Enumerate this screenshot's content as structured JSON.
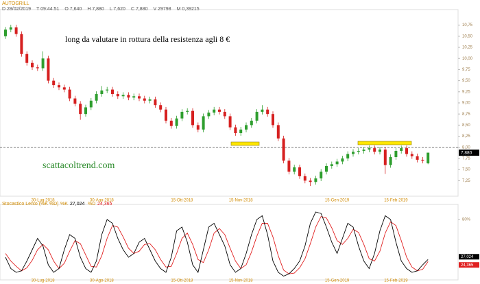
{
  "header": {
    "items": [
      "D 28/02/2019",
      "T 09:44:51",
      "O 7,640",
      "H 7,880",
      "L 7,620",
      "C 7,880",
      "V 29798",
      "M 0,39215"
    ]
  },
  "chart_data": [
    {
      "type": "candlestick",
      "title": "AUTOGRILL",
      "categories": [
        null,
        null,
        null,
        null,
        null,
        null,
        null,
        "30-Lug-2018",
        null,
        null,
        null,
        null,
        null,
        null,
        null,
        null,
        null,
        null,
        "30-Ago-2018",
        null,
        null,
        null,
        null,
        null,
        null,
        null,
        null,
        null,
        null,
        null,
        null,
        null,
        null,
        "15-Ott-2018",
        null,
        null,
        null,
        null,
        null,
        null,
        null,
        null,
        null,
        null,
        "15-Nov-2018",
        null,
        null,
        null,
        null,
        null,
        null,
        null,
        null,
        null,
        null,
        null,
        null,
        null,
        null,
        null,
        null,
        null,
        "15-Gen-2019",
        null,
        null,
        null,
        null,
        null,
        null,
        null,
        null,
        null,
        null,
        "15-Feb-2019",
        null,
        null,
        null,
        null,
        null,
        null
      ],
      "open": [
        10.5,
        10.65,
        10.7,
        10.55,
        10.1,
        9.9,
        9.8,
        9.78,
        10.0,
        9.5,
        9.4,
        9.35,
        9.3,
        9.1,
        8.98,
        8.75,
        8.9,
        9.05,
        9.2,
        9.28,
        9.3,
        9.2,
        9.15,
        9.18,
        9.12,
        9.15,
        9.1,
        9.05,
        9.08,
        8.95,
        8.85,
        8.6,
        8.48,
        8.65,
        8.8,
        8.82,
        8.5,
        8.4,
        8.7,
        8.78,
        8.85,
        8.8,
        8.7,
        8.45,
        8.32,
        8.4,
        8.5,
        8.6,
        8.8,
        8.85,
        8.75,
        8.5,
        8.2,
        7.7,
        7.45,
        7.55,
        7.35,
        7.25,
        7.22,
        7.3,
        7.45,
        7.58,
        7.62,
        7.68,
        7.75,
        7.85,
        7.9,
        7.92,
        7.95,
        7.98,
        7.9,
        7.95,
        7.6,
        7.78,
        7.92,
        7.98,
        7.85,
        7.8,
        7.72,
        7.64
      ],
      "high": [
        10.71,
        10.76,
        10.76,
        10.61,
        10.16,
        9.96,
        9.86,
        10.16,
        10.06,
        9.56,
        9.46,
        9.41,
        9.36,
        9.16,
        9.04,
        8.96,
        9.11,
        9.26,
        9.38,
        9.36,
        9.36,
        9.26,
        9.24,
        9.24,
        9.21,
        9.21,
        9.16,
        9.14,
        9.14,
        9.01,
        8.91,
        8.66,
        8.71,
        8.86,
        8.88,
        8.88,
        8.56,
        8.76,
        8.84,
        8.91,
        8.91,
        8.86,
        8.76,
        8.51,
        8.46,
        8.56,
        8.66,
        8.86,
        8.95,
        8.91,
        8.81,
        8.56,
        8.26,
        7.76,
        7.61,
        7.61,
        7.41,
        7.31,
        7.36,
        7.51,
        7.64,
        7.68,
        7.74,
        7.81,
        7.91,
        7.96,
        7.98,
        8.01,
        8.04,
        8.04,
        8.01,
        8.01,
        7.84,
        7.98,
        8.04,
        8.04,
        7.91,
        7.86,
        7.78,
        7.88
      ],
      "low": [
        10.44,
        10.59,
        10.49,
        10.04,
        9.84,
        9.74,
        9.72,
        9.72,
        9.44,
        9.34,
        9.29,
        9.24,
        9.04,
        8.92,
        8.62,
        8.69,
        8.84,
        8.99,
        9.14,
        9.22,
        9.14,
        9.09,
        9.09,
        9.06,
        9.06,
        9.04,
        8.99,
        8.99,
        8.89,
        8.79,
        8.54,
        8.42,
        8.42,
        8.59,
        8.74,
        8.44,
        8.34,
        8.34,
        8.64,
        8.72,
        8.74,
        8.64,
        8.39,
        8.26,
        8.26,
        8.34,
        8.44,
        8.54,
        8.74,
        8.69,
        8.44,
        8.14,
        7.64,
        7.39,
        7.39,
        7.29,
        7.19,
        7.13,
        7.16,
        7.24,
        7.39,
        7.52,
        7.56,
        7.62,
        7.69,
        7.79,
        7.84,
        7.86,
        7.89,
        7.84,
        7.84,
        7.4,
        7.54,
        7.72,
        7.86,
        7.79,
        7.74,
        7.66,
        7.64,
        7.62
      ],
      "close": [
        10.65,
        10.7,
        10.55,
        10.1,
        9.9,
        9.8,
        9.78,
        10.0,
        9.5,
        9.4,
        9.35,
        9.3,
        9.1,
        8.98,
        8.75,
        8.9,
        9.05,
        9.2,
        9.28,
        9.3,
        9.2,
        9.15,
        9.18,
        9.12,
        9.15,
        9.1,
        9.05,
        9.08,
        8.95,
        8.85,
        8.6,
        8.48,
        8.65,
        8.8,
        8.82,
        8.5,
        8.4,
        8.7,
        8.78,
        8.85,
        8.8,
        8.7,
        8.45,
        8.32,
        8.4,
        8.5,
        8.6,
        8.8,
        8.85,
        8.75,
        8.5,
        8.2,
        7.7,
        7.45,
        7.55,
        7.35,
        7.25,
        7.22,
        7.3,
        7.45,
        7.58,
        7.62,
        7.68,
        7.75,
        7.85,
        7.9,
        7.92,
        7.95,
        7.98,
        7.9,
        7.95,
        7.6,
        7.78,
        7.92,
        7.98,
        7.85,
        7.8,
        7.72,
        7.7,
        7.88
      ],
      "up_color": "#2e9e2e",
      "down_color": "#d62020",
      "ylim": [
        6.9,
        11.1
      ],
      "yticks": [
        {
          "value": 10.75,
          "label": "10,75"
        },
        {
          "value": 10.5,
          "label": "10,50"
        },
        {
          "value": 10.25,
          "label": "10,25"
        },
        {
          "value": 10,
          "label": "10,00"
        },
        {
          "value": 9.75,
          "label": "9,75"
        },
        {
          "value": 9.5,
          "label": "9,50"
        },
        {
          "value": 9.25,
          "label": "9,25"
        },
        {
          "value": 9,
          "label": "9,00"
        },
        {
          "value": 8.75,
          "label": "8,75"
        },
        {
          "value": 8.5,
          "label": "8,50"
        },
        {
          "value": 8.25,
          "label": "8,25"
        },
        {
          "value": 8,
          "label": "8,00"
        },
        {
          "value": 7.75,
          "label": "7,75"
        },
        {
          "value": 7.5,
          "label": "7,50"
        },
        {
          "value": 7.25,
          "label": "7,25"
        }
      ],
      "reference_line": 8,
      "last_label": "7,880",
      "annotations": [
        "long da valutare in rottura della resistenza agli 8 €",
        "scattacoltrend.com"
      ]
    },
    {
      "type": "line",
      "title": "Stocastico Lento (%K %D)",
      "categories": [
        null,
        null,
        null,
        null,
        null,
        null,
        null,
        "30-Lug-2018",
        null,
        null,
        null,
        null,
        null,
        null,
        null,
        null,
        null,
        null,
        "30-Ago-2018",
        null,
        null,
        null,
        null,
        null,
        null,
        null,
        null,
        null,
        null,
        null,
        null,
        null,
        null,
        "15-Ott-2018",
        null,
        null,
        null,
        null,
        null,
        null,
        null,
        null,
        null,
        null,
        "15-Nov-2018",
        null,
        null,
        null,
        null,
        null,
        null,
        null,
        null,
        null,
        null,
        null,
        null,
        null,
        null,
        null,
        null,
        null,
        "15-Gen-2019",
        null,
        null,
        null,
        null,
        null,
        null,
        null,
        null,
        null,
        null,
        "15-Feb-2019",
        null,
        null,
        null,
        null,
        null,
        null
      ],
      "series": [
        {
          "name": "%K",
          "color": "#000000",
          "value_label": "27,024",
          "values": [
            30,
            15,
            10,
            12,
            25,
            40,
            55,
            45,
            20,
            10,
            15,
            40,
            60,
            55,
            30,
            15,
            10,
            25,
            60,
            80,
            75,
            55,
            40,
            30,
            35,
            50,
            55,
            40,
            25,
            15,
            10,
            30,
            65,
            70,
            50,
            20,
            10,
            40,
            70,
            75,
            60,
            45,
            20,
            10,
            15,
            35,
            60,
            80,
            85,
            60,
            25,
            10,
            5,
            8,
            15,
            25,
            45,
            75,
            90,
            88,
            70,
            50,
            35,
            55,
            75,
            70,
            45,
            25,
            15,
            35,
            65,
            85,
            80,
            50,
            25,
            15,
            10,
            12,
            20,
            27.024
          ]
        },
        {
          "name": "%D",
          "color": "#e02020",
          "value_label": "24,365",
          "values": [
            35,
            25,
            18,
            12,
            16,
            26,
            40,
            47,
            40,
            25,
            15,
            22,
            38,
            52,
            48,
            33,
            18,
            17,
            32,
            55,
            72,
            70,
            57,
            42,
            35,
            38,
            47,
            48,
            40,
            27,
            17,
            18,
            35,
            55,
            62,
            47,
            27,
            23,
            40,
            62,
            68,
            60,
            42,
            25,
            15,
            20,
            37,
            58,
            75,
            75,
            57,
            32,
            13,
            8,
            9,
            16,
            28,
            48,
            70,
            84,
            82,
            69,
            52,
            47,
            55,
            67,
            63,
            47,
            28,
            25,
            38,
            62,
            77,
            72,
            52,
            30,
            17,
            12,
            14,
            24.365
          ]
        }
      ],
      "ylim": [
        0,
        100
      ],
      "yticks": [
        {
          "value": 80,
          "label": "80%"
        }
      ]
    }
  ]
}
